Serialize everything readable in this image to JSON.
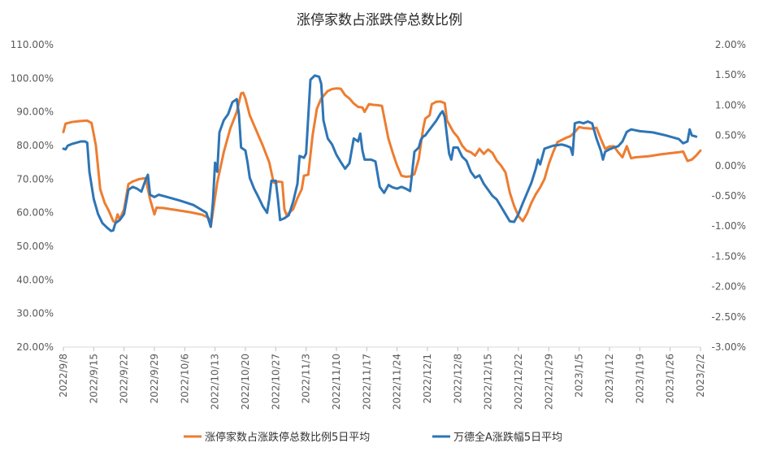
{
  "chart_data": {
    "type": "line",
    "title": "涨停家数占涨跌停总数比例",
    "left_axis": {
      "min": 20,
      "max": 110,
      "step": 10,
      "tick_labels": [
        "110.00%",
        "100.00%",
        "90.00%",
        "80.00%",
        "70.00%",
        "60.00%",
        "50.00%",
        "40.00%",
        "30.00%",
        "20.00%"
      ]
    },
    "right_axis": {
      "min": -3.0,
      "max": 2.0,
      "step": 0.5,
      "tick_labels": [
        "2.00%",
        "1.50%",
        "1.00%",
        "0.50%",
        "0.00%",
        "-0.50%",
        "-1.00%",
        "-1.50%",
        "-2.00%",
        "-2.50%",
        "-3.00%"
      ]
    },
    "x_range": [
      0,
      147
    ],
    "x_ticks": [
      {
        "t": 0,
        "label": "2022/9/8"
      },
      {
        "t": 7,
        "label": "2022/9/15"
      },
      {
        "t": 14,
        "label": "2022/9/22"
      },
      {
        "t": 21,
        "label": "2022/9/29"
      },
      {
        "t": 28,
        "label": "2022/10/6"
      },
      {
        "t": 35,
        "label": "2022/10/13"
      },
      {
        "t": 42,
        "label": "2022/10/20"
      },
      {
        "t": 49,
        "label": "2022/10/27"
      },
      {
        "t": 56,
        "label": "2022/11/3"
      },
      {
        "t": 63,
        "label": "2022/11/10"
      },
      {
        "t": 70,
        "label": "2022/11/17"
      },
      {
        "t": 77,
        "label": "2022/11/24"
      },
      {
        "t": 84,
        "label": "2022/12/1"
      },
      {
        "t": 91,
        "label": "2022/12/8"
      },
      {
        "t": 98,
        "label": "2022/12/15"
      },
      {
        "t": 105,
        "label": "2022/12/22"
      },
      {
        "t": 112,
        "label": "2022/12/29"
      },
      {
        "t": 119,
        "label": "2023/1/5"
      },
      {
        "t": 126,
        "label": "2023/1/12"
      },
      {
        "t": 133,
        "label": "2023/1/19"
      },
      {
        "t": 140,
        "label": "2023/1/26"
      },
      {
        "t": 147,
        "label": "2023/2/2"
      }
    ],
    "series": [
      {
        "name": "涨停家数占涨跌停总数比例5日平均",
        "axis": "left",
        "color": "#ED7D31",
        "points": [
          [
            0,
            84
          ],
          [
            0.5,
            86.5
          ],
          [
            2,
            87
          ],
          [
            4,
            87.3
          ],
          [
            5.5,
            87.4
          ],
          [
            6.5,
            86.7
          ],
          [
            7.5,
            80
          ],
          [
            8.5,
            67
          ],
          [
            9.5,
            63
          ],
          [
            10.5,
            60.5
          ],
          [
            11.5,
            57.5
          ],
          [
            12,
            57.2
          ],
          [
            12.5,
            59.5
          ],
          [
            13,
            58
          ],
          [
            14,
            61
          ],
          [
            15,
            68.5
          ],
          [
            16,
            69.3
          ],
          [
            17.5,
            70
          ],
          [
            19,
            70.3
          ],
          [
            19.5,
            67
          ],
          [
            20,
            64
          ],
          [
            21,
            59.5
          ],
          [
            21.5,
            61.5
          ],
          [
            23,
            61.4
          ],
          [
            26,
            60.8
          ],
          [
            29,
            60.2
          ],
          [
            32,
            59.4
          ],
          [
            33.5,
            58.5
          ],
          [
            34,
            55.8
          ],
          [
            35.5,
            69
          ],
          [
            37,
            78
          ],
          [
            38.5,
            85
          ],
          [
            40,
            90
          ],
          [
            41,
            95.5
          ],
          [
            41.5,
            95.7
          ],
          [
            42,
            94
          ],
          [
            43,
            89
          ],
          [
            44,
            86
          ],
          [
            46,
            80
          ],
          [
            47.5,
            75
          ],
          [
            48.5,
            69
          ],
          [
            49,
            68.8
          ],
          [
            49.5,
            69.3
          ],
          [
            50.5,
            69.1
          ],
          [
            51,
            61
          ],
          [
            51.5,
            59.3
          ],
          [
            53,
            61
          ],
          [
            54,
            64.3
          ],
          [
            55,
            67
          ],
          [
            55.5,
            71
          ],
          [
            56.5,
            71.3
          ],
          [
            57.5,
            83
          ],
          [
            58.5,
            91
          ],
          [
            59.5,
            94
          ],
          [
            61,
            96.2
          ],
          [
            62,
            96.8
          ],
          [
            63,
            97
          ],
          [
            64,
            96.9
          ],
          [
            65,
            95
          ],
          [
            66,
            94
          ],
          [
            67,
            92.5
          ],
          [
            68,
            91.5
          ],
          [
            69,
            91.3
          ],
          [
            69.5,
            90
          ],
          [
            70.5,
            92.3
          ],
          [
            71.5,
            92.1
          ],
          [
            72.5,
            92
          ],
          [
            73.5,
            91.8
          ],
          [
            75,
            82
          ],
          [
            76,
            77.8
          ],
          [
            77,
            74
          ],
          [
            78,
            71
          ],
          [
            79,
            70.7
          ],
          [
            80,
            70.8
          ],
          [
            81,
            71.5
          ],
          [
            82,
            76
          ],
          [
            83,
            85
          ],
          [
            83.5,
            88
          ],
          [
            84.5,
            89
          ],
          [
            85,
            92.3
          ],
          [
            86,
            93
          ],
          [
            87,
            93.1
          ],
          [
            88,
            92.6
          ],
          [
            88.5,
            87.5
          ],
          [
            90,
            84
          ],
          [
            91,
            82.5
          ],
          [
            92,
            80
          ],
          [
            93,
            78.5
          ],
          [
            94,
            78
          ],
          [
            95,
            77
          ],
          [
            96,
            79
          ],
          [
            97,
            77.5
          ],
          [
            98,
            78.8
          ],
          [
            99,
            77.8
          ],
          [
            100,
            75.5
          ],
          [
            101,
            74
          ],
          [
            102,
            72
          ],
          [
            103,
            66
          ],
          [
            104,
            62
          ],
          [
            105,
            59
          ],
          [
            106,
            57.5
          ],
          [
            107,
            59.8
          ],
          [
            108,
            63
          ],
          [
            109,
            65.5
          ],
          [
            110,
            67.5
          ],
          [
            111,
            70
          ],
          [
            112,
            74.5
          ],
          [
            113,
            78
          ],
          [
            114,
            81
          ],
          [
            116,
            82.3
          ],
          [
            117,
            82.8
          ],
          [
            118,
            84
          ],
          [
            119,
            85.5
          ],
          [
            120,
            85.2
          ],
          [
            121,
            85.1
          ],
          [
            122,
            85
          ],
          [
            123,
            85.3
          ],
          [
            124,
            82
          ],
          [
            125,
            79
          ],
          [
            126,
            79.7
          ],
          [
            127,
            79.8
          ],
          [
            128,
            78
          ],
          [
            129,
            76.5
          ],
          [
            130,
            79.8
          ],
          [
            131,
            76.2
          ],
          [
            132,
            76.5
          ],
          [
            135,
            76.8
          ],
          [
            138,
            77.4
          ],
          [
            140,
            77.7
          ],
          [
            142,
            78
          ],
          [
            143,
            78.2
          ],
          [
            144,
            75.4
          ],
          [
            145,
            75.8
          ],
          [
            146,
            77
          ],
          [
            147,
            78.5
          ]
        ]
      },
      {
        "name": "万德全A涨跌幅5日平均",
        "axis": "right",
        "color": "#2E75B6",
        "points": [
          [
            0,
            0.28
          ],
          [
            0.5,
            0.27
          ],
          [
            1,
            0.33
          ],
          [
            2,
            0.36
          ],
          [
            4,
            0.4
          ],
          [
            5,
            0.4
          ],
          [
            5.5,
            0.38
          ],
          [
            6,
            -0.1
          ],
          [
            7,
            -0.55
          ],
          [
            8,
            -0.8
          ],
          [
            9,
            -0.95
          ],
          [
            10,
            -1.02
          ],
          [
            11,
            -1.08
          ],
          [
            11.5,
            -1.07
          ],
          [
            12,
            -0.95
          ],
          [
            13,
            -0.9
          ],
          [
            14,
            -0.8
          ],
          [
            15,
            -0.4
          ],
          [
            16,
            -0.35
          ],
          [
            17,
            -0.38
          ],
          [
            18,
            -0.43
          ],
          [
            19,
            -0.23
          ],
          [
            19.5,
            -0.15
          ],
          [
            20,
            -0.48
          ],
          [
            21,
            -0.52
          ],
          [
            22,
            -0.48
          ],
          [
            24,
            -0.52
          ],
          [
            27,
            -0.58
          ],
          [
            30,
            -0.65
          ],
          [
            33,
            -0.78
          ],
          [
            34,
            -1.01
          ],
          [
            34.5,
            -0.6
          ],
          [
            35,
            0.05
          ],
          [
            35.5,
            -0.1
          ],
          [
            36,
            0.55
          ],
          [
            37,
            0.75
          ],
          [
            38,
            0.85
          ],
          [
            39,
            1.05
          ],
          [
            40,
            1.1
          ],
          [
            40.5,
            0.85
          ],
          [
            41,
            0.3
          ],
          [
            42,
            0.25
          ],
          [
            42.5,
            0.05
          ],
          [
            43,
            -0.2
          ],
          [
            44,
            -0.38
          ],
          [
            45,
            -0.52
          ],
          [
            46,
            -0.67
          ],
          [
            47,
            -0.78
          ],
          [
            47.5,
            -0.55
          ],
          [
            48,
            -0.25
          ],
          [
            49,
            -0.25
          ],
          [
            49.5,
            -0.55
          ],
          [
            50,
            -0.9
          ],
          [
            51,
            -0.87
          ],
          [
            52,
            -0.82
          ],
          [
            53,
            -0.6
          ],
          [
            54,
            -0.3
          ],
          [
            54.5,
            0.16
          ],
          [
            55.5,
            0.13
          ],
          [
            56,
            0.2
          ],
          [
            57,
            1.42
          ],
          [
            58,
            1.49
          ],
          [
            59,
            1.47
          ],
          [
            59.5,
            1.35
          ],
          [
            60,
            0.75
          ],
          [
            61,
            0.45
          ],
          [
            62,
            0.35
          ],
          [
            63,
            0.18
          ],
          [
            64,
            0.06
          ],
          [
            65,
            -0.05
          ],
          [
            66,
            0.04
          ],
          [
            67,
            0.45
          ],
          [
            68,
            0.4
          ],
          [
            68.5,
            0.53
          ],
          [
            69,
            0.25
          ],
          [
            69.5,
            0.1
          ],
          [
            71,
            0.1
          ],
          [
            72,
            0.07
          ],
          [
            73,
            -0.35
          ],
          [
            74,
            -0.45
          ],
          [
            75,
            -0.32
          ],
          [
            76,
            -0.36
          ],
          [
            77,
            -0.38
          ],
          [
            78,
            -0.35
          ],
          [
            79,
            -0.38
          ],
          [
            80,
            -0.42
          ],
          [
            81,
            0.23
          ],
          [
            82,
            0.3
          ],
          [
            82.5,
            0.43
          ],
          [
            83,
            0.48
          ],
          [
            83.5,
            0.5
          ],
          [
            84,
            0.55
          ],
          [
            86,
            0.74
          ],
          [
            87,
            0.86
          ],
          [
            87.5,
            0.9
          ],
          [
            88,
            0.8
          ],
          [
            89,
            0.2
          ],
          [
            89.5,
            0.1
          ],
          [
            90,
            0.3
          ],
          [
            91,
            0.3
          ],
          [
            92,
            0.15
          ],
          [
            93,
            0.08
          ],
          [
            94,
            -0.1
          ],
          [
            95,
            -0.2
          ],
          [
            96,
            -0.16
          ],
          [
            97,
            -0.3
          ],
          [
            98,
            -0.4
          ],
          [
            99,
            -0.5
          ],
          [
            100,
            -0.56
          ],
          [
            101,
            -0.68
          ],
          [
            102,
            -0.8
          ],
          [
            103,
            -0.92
          ],
          [
            104,
            -0.93
          ],
          [
            105,
            -0.8
          ],
          [
            106,
            -0.62
          ],
          [
            107,
            -0.45
          ],
          [
            108,
            -0.28
          ],
          [
            109,
            -0.05
          ],
          [
            109.5,
            0.1
          ],
          [
            110,
            0.02
          ],
          [
            111,
            0.28
          ],
          [
            113,
            0.33
          ],
          [
            115,
            0.35
          ],
          [
            116,
            0.33
          ],
          [
            117,
            0.3
          ],
          [
            117.5,
            0.18
          ],
          [
            118,
            0.7
          ],
          [
            119,
            0.72
          ],
          [
            120,
            0.7
          ],
          [
            121,
            0.73
          ],
          [
            122,
            0.7
          ],
          [
            123,
            0.45
          ],
          [
            124,
            0.25
          ],
          [
            124.5,
            0.1
          ],
          [
            125,
            0.23
          ],
          [
            126,
            0.27
          ],
          [
            127,
            0.3
          ],
          [
            128,
            0.32
          ],
          [
            129,
            0.4
          ],
          [
            130,
            0.56
          ],
          [
            131,
            0.6
          ],
          [
            133,
            0.57
          ],
          [
            136,
            0.55
          ],
          [
            139,
            0.5
          ],
          [
            142,
            0.44
          ],
          [
            143,
            0.37
          ],
          [
            144,
            0.4
          ],
          [
            144.5,
            0.6
          ],
          [
            145,
            0.5
          ],
          [
            146,
            0.48
          ]
        ]
      }
    ],
    "legend": [
      {
        "label": "涨停家数占涨跌停总数比例5日平均",
        "color": "#ED7D31"
      },
      {
        "label": "万德全A涨跌幅5日平均",
        "color": "#2E75B6"
      }
    ],
    "legend_position": "bottom",
    "grid": false
  }
}
